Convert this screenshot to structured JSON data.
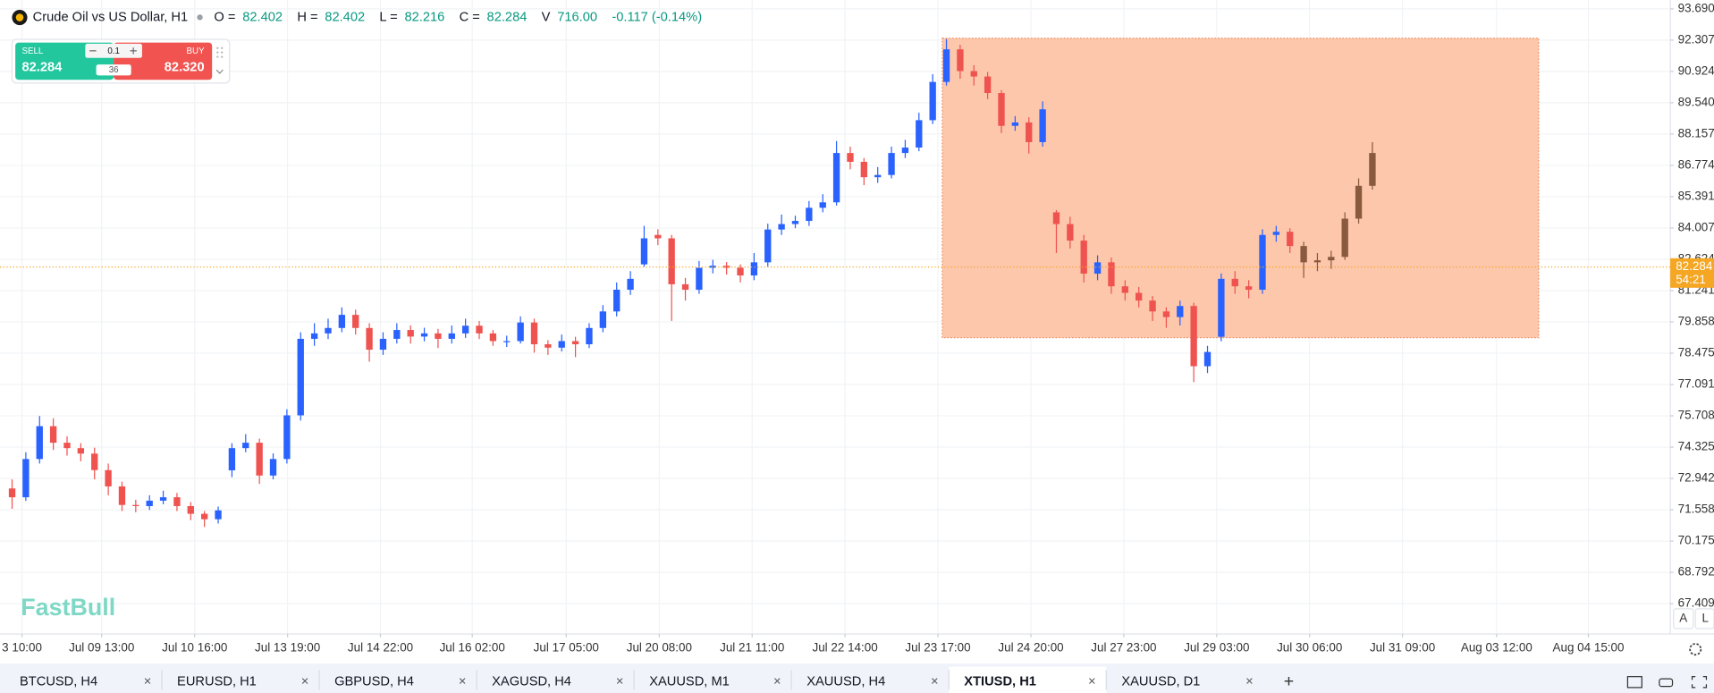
{
  "header": {
    "title": "Crude Oil vs US Dollar, H1",
    "o_label": "O =",
    "o": "82.402",
    "h_label": "H =",
    "h": "82.402",
    "l_label": "L =",
    "l": "82.216",
    "c_label": "C =",
    "c": "82.284",
    "v_label": "V",
    "v": "716.00",
    "change": "-0.117 (-0.14%)"
  },
  "trade": {
    "sell_label": "SELL",
    "sell_price": "82.284",
    "buy_label": "BUY",
    "buy_price": "82.320",
    "lot": "0.1",
    "spread": "36"
  },
  "watermark": "FastBull",
  "scale_buttons": [
    "A",
    "L"
  ],
  "tabs": [
    "BTCUSD, H4",
    "EURUSD, H1",
    "GBPUSD, H4",
    "XAGUSD, H4",
    "XAUUSD, M1",
    "XAUUSD, H4",
    "XTIUSD, H1",
    "XAUUSD, D1"
  ],
  "active_tab": 6,
  "chart_data": {
    "type": "candlestick",
    "ylim": [
      66.07,
      94.08
    ],
    "yticks": [
      {
        "value": 93.69,
        "label": "93.690"
      },
      92.307,
      90.924,
      {
        "value": 89.54,
        "label": "89.540"
      },
      88.157,
      86.774,
      85.391,
      84.007,
      82.624,
      81.241,
      79.858,
      78.475,
      77.091,
      75.708,
      74.325,
      72.942,
      71.558,
      70.175,
      68.792,
      67.409
    ],
    "xlim": [
      -0.88,
      120.68
    ],
    "xticks": [
      {
        "value": 0.72,
        "label": "3 10:00"
      },
      {
        "value": 6.52,
        "label": "Jul 09 13:00"
      },
      {
        "value": 13.29,
        "label": "Jul 10 16:00"
      },
      {
        "value": 20.05,
        "label": "Jul 13 19:00"
      },
      {
        "value": 26.81,
        "label": "Jul 14 22:00"
      },
      {
        "value": 33.49,
        "label": "Jul 16 02:00"
      },
      {
        "value": 40.33,
        "label": "Jul 17 05:00"
      },
      {
        "value": 47.1,
        "label": "Jul 20 08:00"
      },
      {
        "value": 53.86,
        "label": "Jul 21 11:00"
      },
      {
        "value": 60.62,
        "label": "Jul 22 14:00"
      },
      {
        "value": 67.38,
        "label": "Jul 23 17:00"
      },
      {
        "value": 74.15,
        "label": "Jul 24 20:00"
      },
      {
        "value": 80.91,
        "label": "Jul 27 23:00"
      },
      {
        "value": 87.67,
        "label": "Jul 29 03:00"
      },
      {
        "value": 94.43,
        "label": "Jul 30 06:00"
      },
      {
        "value": 101.19,
        "label": "Jul 31 09:00"
      },
      {
        "value": 108.04,
        "label": "Aug 03 12:00"
      },
      {
        "value": 114.72,
        "label": "Aug 04 15:00"
      }
    ],
    "grid": true,
    "color_up": "#2962ff",
    "color_down": "#ef5350",
    "series": [
      {
        "x": [
          0,
          1,
          2,
          3,
          4,
          5,
          6,
          7,
          8,
          9,
          10,
          11,
          12,
          13,
          14,
          15,
          16,
          17,
          18,
          19,
          20,
          21,
          22,
          23,
          24,
          25,
          26,
          27,
          28,
          29,
          30,
          31,
          32,
          33,
          34,
          35,
          36,
          37,
          38,
          39,
          40,
          41,
          42,
          43,
          44,
          45,
          46,
          47,
          48,
          49,
          50,
          51,
          52,
          53,
          54,
          55,
          56,
          57,
          58,
          59,
          60,
          61,
          62,
          63,
          64,
          65,
          66,
          67,
          68,
          69,
          70,
          71,
          72,
          73,
          74,
          75,
          76,
          77,
          78,
          79,
          80,
          81,
          82,
          83,
          84,
          85,
          86,
          87,
          88,
          89,
          90,
          91,
          92,
          93
        ],
        "open": [
          72.5,
          72.11,
          73.8,
          75.25,
          74.52,
          74.28,
          74.04,
          73.31,
          72.59,
          71.77,
          71.72,
          71.96,
          72.11,
          71.72,
          71.38,
          71.14,
          73.3,
          74.28,
          74.52,
          73.07,
          73.8,
          75.73,
          79.11,
          79.35,
          79.59,
          80.17,
          79.59,
          78.63,
          79.11,
          79.5,
          79.21,
          79.35,
          79.11,
          79.35,
          79.69,
          79.35,
          79.01,
          79.01,
          79.83,
          78.87,
          78.72,
          79.01,
          78.87,
          79.59,
          80.32,
          81.28,
          82.4,
          83.7,
          83.55,
          81.52,
          81.28,
          82.25,
          82.34,
          82.25,
          81.91,
          82.49,
          83.94,
          84.18,
          84.32,
          84.9,
          85.14,
          87.32,
          86.93,
          86.25,
          86.35,
          87.32,
          87.56,
          88.77,
          90.46,
          91.9,
          90.94,
          90.7,
          89.97,
          88.52,
          88.67,
          87.8,
          84.7,
          84.18,
          83.45,
          81.99,
          82.49,
          81.43,
          81.14,
          80.8,
          80.32,
          80.07,
          80.56,
          77.9,
          79.2,
          81.76,
          81.43,
          81.28,
          83.7,
          83.84
        ],
        "high": [
          72.9,
          74.1,
          75.7,
          75.6,
          74.8,
          74.5,
          74.3,
          73.6,
          72.8,
          72.0,
          72.2,
          72.4,
          72.3,
          71.9,
          71.5,
          71.7,
          74.5,
          74.9,
          74.7,
          74.05,
          76.0,
          79.4,
          79.8,
          80.0,
          80.5,
          80.4,
          79.8,
          79.4,
          79.8,
          79.7,
          79.6,
          79.55,
          79.7,
          80.0,
          79.9,
          79.5,
          79.25,
          80.1,
          80.0,
          79.05,
          79.3,
          79.2,
          79.8,
          80.6,
          81.6,
          82.1,
          84.1,
          83.95,
          83.7,
          81.8,
          82.55,
          82.6,
          82.5,
          82.4,
          82.9,
          84.2,
          84.6,
          84.55,
          85.2,
          85.5,
          87.85,
          87.6,
          87.1,
          86.7,
          87.6,
          87.9,
          89.1,
          90.8,
          92.35,
          92.1,
          91.2,
          90.9,
          90.1,
          88.95,
          88.9,
          89.6,
          84.8,
          84.5,
          83.7,
          82.8,
          82.7,
          81.7,
          81.4,
          81.0,
          80.5,
          80.8,
          80.7,
          78.8,
          82.0,
          82.1,
          81.7,
          83.95,
          84.1,
          84.0
        ],
        "low": [
          71.6,
          71.95,
          73.6,
          74.2,
          73.95,
          73.7,
          72.9,
          72.2,
          71.5,
          71.45,
          71.55,
          71.8,
          71.5,
          71.1,
          70.8,
          70.95,
          73.0,
          74.1,
          72.7,
          72.9,
          73.6,
          75.5,
          78.8,
          79.1,
          79.4,
          79.3,
          78.1,
          78.4,
          78.9,
          78.9,
          79.0,
          78.7,
          78.9,
          79.15,
          79.1,
          78.8,
          78.75,
          78.9,
          78.5,
          78.4,
          78.55,
          78.3,
          78.7,
          79.4,
          80.1,
          81.05,
          82.3,
          83.25,
          79.9,
          80.8,
          81.1,
          82.0,
          81.95,
          81.6,
          81.7,
          82.3,
          83.7,
          84.0,
          84.1,
          84.7,
          85.0,
          86.6,
          85.9,
          86.0,
          86.2,
          87.1,
          87.4,
          88.6,
          90.3,
          90.6,
          90.3,
          89.7,
          88.2,
          88.3,
          87.3,
          87.6,
          82.9,
          83.1,
          81.6,
          81.7,
          81.1,
          80.8,
          80.5,
          79.9,
          79.6,
          79.7,
          77.2,
          77.6,
          79.0,
          81.1,
          80.9,
          81.1,
          83.4,
          82.9
        ],
        "close": [
          72.11,
          73.8,
          75.25,
          74.52,
          74.28,
          74.04,
          73.31,
          72.59,
          71.77,
          71.72,
          71.96,
          72.11,
          71.72,
          71.38,
          71.14,
          71.53,
          74.28,
          74.52,
          73.07,
          73.8,
          75.73,
          79.11,
          79.35,
          79.59,
          80.17,
          79.59,
          78.63,
          79.11,
          79.5,
          79.21,
          79.35,
          79.11,
          79.35,
          79.69,
          79.35,
          79.01,
          79.01,
          79.83,
          78.87,
          78.72,
          79.01,
          78.87,
          79.59,
          80.32,
          81.28,
          81.76,
          83.55,
          83.55,
          81.52,
          81.28,
          82.25,
          82.34,
          82.25,
          81.91,
          82.49,
          83.94,
          84.18,
          84.32,
          84.9,
          85.14,
          87.32,
          86.93,
          86.25,
          86.35,
          87.32,
          87.56,
          88.77,
          90.46,
          91.9,
          90.94,
          90.7,
          89.97,
          88.52,
          88.67,
          87.8,
          89.25,
          84.18,
          83.45,
          81.99,
          82.49,
          81.43,
          81.14,
          80.8,
          80.32,
          80.07,
          80.56,
          77.9,
          78.53,
          81.76,
          81.43,
          81.28,
          83.7,
          83.84,
          83.21
        ]
      },
      {
        "color": "#8a5a3e",
        "x": [
          94,
          95,
          96,
          97,
          98,
          99
        ],
        "open": [
          83.21,
          82.49,
          82.58,
          82.73,
          84.42,
          85.87
        ],
        "high": [
          83.4,
          82.9,
          83.0,
          84.7,
          86.2,
          87.8
        ],
        "low": [
          81.8,
          82.1,
          82.2,
          82.6,
          84.2,
          85.7
        ],
        "close": [
          82.49,
          82.58,
          82.73,
          84.42,
          85.87,
          87.32
        ]
      }
    ],
    "rectangle": {
      "x": [
        67.7,
        111.1
      ],
      "y": [
        92.39,
        79.16
      ],
      "color": "#fcc7ab"
    },
    "last_price": 82.284,
    "last_price_color": "#f5a623",
    "countdown": "54:21"
  }
}
